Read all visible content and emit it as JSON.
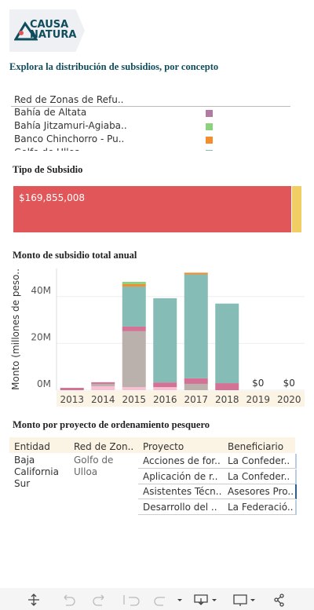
{
  "header": {
    "logo_lines": [
      "CAUSA",
      "NATURA"
    ],
    "title": "Explora la distribución de subsidios, por concepto"
  },
  "legend": {
    "items": [
      {
        "label": "Red de Zonas de Refu..",
        "color": null
      },
      {
        "label": "Bahía de Altata",
        "color": "#b07aa1"
      },
      {
        "label": "Bahía Jitzamuri-Agiaba..",
        "color": "#8cd17d"
      },
      {
        "label": "Banco Chinchorro - Pu..",
        "color": "#f28e2b"
      },
      {
        "label": "Golfo de Ulloa",
        "color": "#86bcb6"
      }
    ]
  },
  "tipo_subsidio": {
    "title": "Tipo de Subsidio",
    "values": [
      169855008,
      5700000
    ],
    "value_labels": [
      "$169,855,008",
      null
    ],
    "colors": [
      "#e15759",
      "#f1ce63"
    ]
  },
  "chart_data": {
    "type": "stacked_bar",
    "title": "Monto de subsidio total anual",
    "y_label": "Monto (millones de peso..",
    "categories": [
      "2013",
      "2014",
      "2015",
      "2016",
      "2017",
      "2018",
      "2019",
      "2020"
    ],
    "series": [
      {
        "color": "#fabfd2",
        "values": [
          0,
          1.7,
          1.3,
          1.3,
          0,
          0,
          0,
          0
        ]
      },
      {
        "color": "#bab0ac",
        "values": [
          0,
          1.0,
          23.9,
          0,
          2.7,
          0,
          0,
          0
        ]
      },
      {
        "color": "#d37295",
        "values": [
          1.0,
          0.7,
          2.0,
          2.0,
          2.4,
          3.0,
          0,
          0
        ]
      },
      {
        "color": "#86bcb6",
        "values": [
          0,
          0,
          17.1,
          36.0,
          44.4,
          34.0,
          0,
          0
        ]
      },
      {
        "color": "#f28e2b",
        "values": [
          0,
          0,
          1.0,
          0,
          0.7,
          0,
          0,
          0
        ]
      },
      {
        "color": "#8cd17d",
        "values": [
          0,
          0,
          1.0,
          0,
          0,
          0,
          0,
          0
        ]
      }
    ],
    "total_values": [
      null,
      null,
      null,
      null,
      null,
      null,
      0,
      0
    ],
    "total_value_labels": [
      null,
      null,
      null,
      null,
      null,
      null,
      "$0",
      "$0"
    ],
    "ylim": [
      0,
      52
    ],
    "yticks": [
      {
        "value": 0,
        "label": "0M"
      },
      {
        "value": 20,
        "label": "20M"
      },
      {
        "value": 40,
        "label": "40M"
      }
    ],
    "grid": true
  },
  "table": {
    "title": "Monto por proyecto de ordenamiento pesquero",
    "headers": [
      "Entidad",
      "Red de Zon..",
      "Proyecto",
      "Beneficiario"
    ],
    "entidad": "Baja California Sur",
    "red": "Golfo de Ulloa",
    "rows": [
      [
        "Acciones de for..",
        "La Confeder.."
      ],
      [
        "Aplicación de r..",
        "La Confeder.."
      ],
      [
        "Asistentes Técn..",
        "Asesores Pro.."
      ],
      [
        "Desarrollo del ..",
        "La Federació.."
      ]
    ]
  }
}
